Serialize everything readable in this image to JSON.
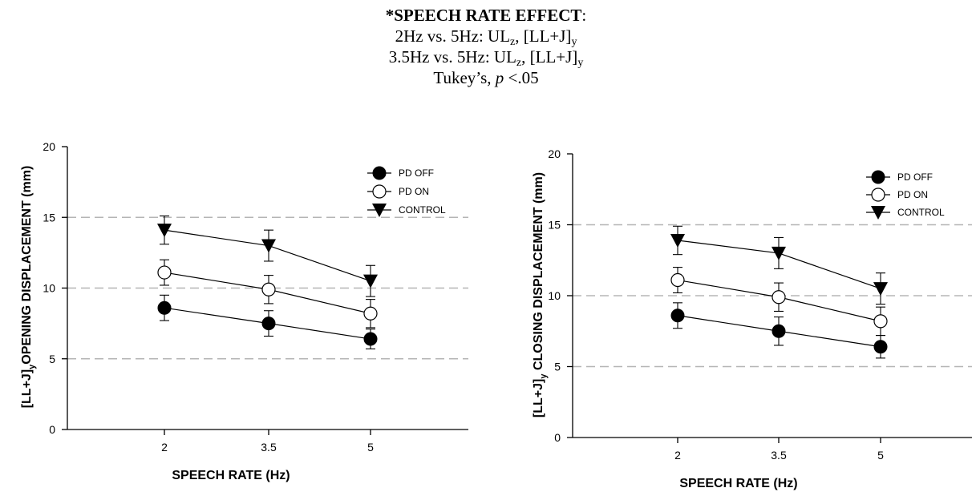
{
  "header": {
    "line1": {
      "bold": "*SPEECH RATE EFFECT",
      "rest": ":"
    },
    "line2": {
      "prefix": "2Hz vs. 5Hz: UL",
      "sub1": "z",
      "mid": ", [LL+J]",
      "sub2": "y"
    },
    "line3": {
      "prefix": "3.5Hz vs. 5Hz: UL",
      "sub1": "z",
      "mid": ", [LL+J]",
      "sub2": "y"
    },
    "line4": {
      "prefix": "Tukey’s, ",
      "italic": "p",
      "suffix": " <.05"
    }
  },
  "chart_data": [
    {
      "type": "line",
      "title": "",
      "xlabel": "SPEECH RATE (Hz)",
      "ylabel_main": "[LL+J]",
      "ylabel_sub": "y",
      "ylabel_rest": "OPENING DISPLACEMENT (mm)",
      "categories": [
        "2",
        "3.5",
        "5"
      ],
      "yticks": [
        "0",
        "5",
        "10",
        "15",
        "20"
      ],
      "ylim": [
        0,
        20
      ],
      "grid": "dashed horizontal at 5, 10, 15",
      "legend_position": "top-right",
      "series": [
        {
          "name": "PD OFF",
          "marker": "filled-circle",
          "values": [
            8.6,
            7.5,
            6.4
          ],
          "errors": [
            0.9,
            0.9,
            0.7
          ]
        },
        {
          "name": "PD ON",
          "marker": "open-circle",
          "values": [
            11.1,
            9.9,
            8.2
          ],
          "errors": [
            0.9,
            1.0,
            1.0
          ]
        },
        {
          "name": "CONTROL",
          "marker": "filled-triangle-down",
          "values": [
            14.1,
            13.0,
            10.5
          ],
          "errors": [
            1.0,
            1.1,
            1.1
          ]
        }
      ]
    },
    {
      "type": "line",
      "title": "",
      "xlabel": "SPEECH RATE (Hz)",
      "ylabel_main": "[LL+J]",
      "ylabel_sub": "y",
      "ylabel_rest": " CLOSING DISPLACEMENT (mm)",
      "categories": [
        "2",
        "3.5",
        "5"
      ],
      "yticks": [
        "0",
        "5",
        "10",
        "15",
        "20"
      ],
      "ylim": [
        0,
        20
      ],
      "grid": "dashed horizontal at 5, 10, 15",
      "legend_position": "top-right",
      "series": [
        {
          "name": "PD OFF",
          "marker": "filled-circle",
          "values": [
            8.6,
            7.5,
            6.4
          ],
          "errors": [
            0.9,
            1.0,
            0.8
          ]
        },
        {
          "name": "PD ON",
          "marker": "open-circle",
          "values": [
            11.1,
            9.9,
            8.2
          ],
          "errors": [
            0.9,
            1.0,
            1.0
          ]
        },
        {
          "name": "CONTROL",
          "marker": "filled-triangle-down",
          "values": [
            13.9,
            13.0,
            10.5
          ],
          "errors": [
            1.0,
            1.1,
            1.1
          ]
        }
      ]
    }
  ]
}
